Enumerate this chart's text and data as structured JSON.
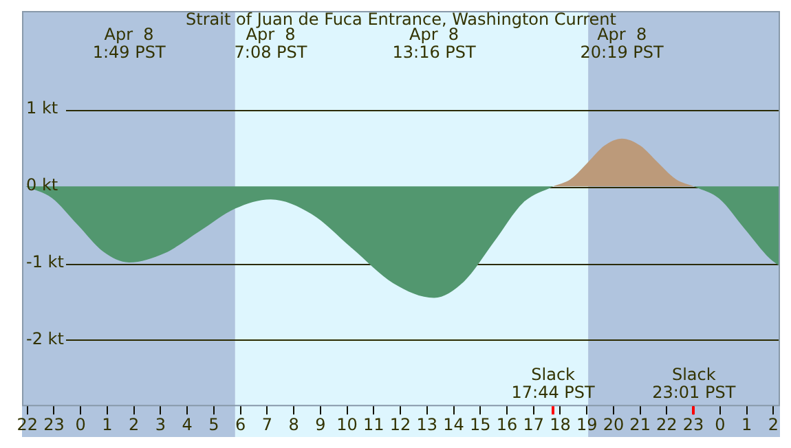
{
  "chart_data": {
    "type": "area",
    "title": "Strait of Juan de Fuca Entrance, Washington Current",
    "series": [
      {
        "color": "#52976f",
        "x": [
          "--04-07T21:56",
          "--04-07T22:55",
          "--04-07T23:53",
          "--04-08T00:51",
          "--04-08T01:49",
          "--04-08T03:09",
          "--04-08T04:29",
          "--04-08T05:48",
          "--04-08T07:08",
          "--04-08T08:40",
          "--04-08T10:12",
          "--04-08T11:44",
          "--04-08T13:16",
          "--04-08T14:23",
          "--04-08T15:30",
          "--04-08T16:37",
          "--04-08T17:44"
        ],
        "values": [
          0,
          -0.15,
          -0.5,
          -0.85,
          -0.99,
          -0.87,
          -0.58,
          -0.29,
          -0.17,
          -0.36,
          -0.81,
          -1.26,
          -1.45,
          -1.24,
          -0.73,
          -0.21,
          0
        ]
      },
      {
        "color": "#bc9a7a",
        "x": [
          "--04-08T17:44",
          "--04-08T18:23",
          "--04-08T19:02",
          "--04-08T19:40",
          "--04-08T20:19",
          "--04-08T21:00",
          "--04-08T21:40",
          "--04-08T22:21",
          "--04-08T23:01"
        ],
        "values": [
          0,
          0.09,
          0.31,
          0.53,
          0.62,
          0.53,
          0.31,
          0.09,
          0
        ]
      },
      {
        "color": "#52976f",
        "x": [
          "--04-08T23:01",
          "--04-08T23:58",
          "--04-09T00:55",
          "--04-09T01:52",
          "--04-09T02:15"
        ],
        "values": [
          0,
          -0.16,
          -0.55,
          -0.94,
          -1.04
        ]
      }
    ],
    "xlim": [
      "--04-07T21:48",
      "--04-09T02:15"
    ],
    "xticks": [
      {
        "value": "--04-07T22:00",
        "label": "22"
      },
      {
        "value": "--04-07T23:00",
        "label": "23"
      },
      {
        "value": "--04-08T00:00",
        "label": "0"
      },
      {
        "value": "--04-08T01:00",
        "label": "1"
      },
      {
        "value": "--04-08T02:00",
        "label": "2"
      },
      {
        "value": "--04-08T03:00",
        "label": "3"
      },
      {
        "value": "--04-08T04:00",
        "label": "4"
      },
      {
        "value": "--04-08T05:00",
        "label": "5"
      },
      {
        "value": "--04-08T06:00",
        "label": "6"
      },
      {
        "value": "--04-08T07:00",
        "label": "7"
      },
      {
        "value": "--04-08T08:00",
        "label": "8"
      },
      {
        "value": "--04-08T09:00",
        "label": "9"
      },
      {
        "value": "--04-08T10:00",
        "label": "10"
      },
      {
        "value": "--04-08T11:00",
        "label": "11"
      },
      {
        "value": "--04-08T12:00",
        "label": "12"
      },
      {
        "value": "--04-08T13:00",
        "label": "13"
      },
      {
        "value": "--04-08T14:00",
        "label": "14"
      },
      {
        "value": "--04-08T15:00",
        "label": "15"
      },
      {
        "value": "--04-08T16:00",
        "label": "16"
      },
      {
        "value": "--04-08T17:00",
        "label": "17"
      },
      {
        "value": "--04-08T18:00",
        "label": "18"
      },
      {
        "value": "--04-08T19:00",
        "label": "19"
      },
      {
        "value": "--04-08T20:00",
        "label": "20"
      },
      {
        "value": "--04-08T21:00",
        "label": "21"
      },
      {
        "value": "--04-08T22:00",
        "label": "22"
      },
      {
        "value": "--04-08T23:00",
        "label": "23"
      },
      {
        "value": "--04-09T00:00",
        "label": "0"
      },
      {
        "value": "--04-09T01:00",
        "label": "1"
      },
      {
        "value": "--04-09T02:00",
        "label": "2"
      }
    ],
    "ylim": [
      -2.86,
      2.28
    ],
    "yticks": [
      {
        "value": -2,
        "label": "-2 kt"
      },
      {
        "value": -1,
        "label": "-1 kt"
      },
      {
        "value": 0,
        "label": "0 kt"
      },
      {
        "value": 1,
        "label": "1 kt"
      }
    ],
    "grid": "y",
    "bands": [
      {
        "axis": "x",
        "from": "--04-07T21:48",
        "to": "--04-08T05:48",
        "color": "#b0c4de"
      },
      {
        "axis": "x",
        "from": "--04-08T05:48",
        "to": "--04-08T19:03",
        "color": "#def6fe"
      },
      {
        "axis": "x",
        "from": "--04-08T19:03",
        "to": "--04-09T02:15",
        "color": "#b0c4de"
      }
    ],
    "annotations": [
      "Apr  8\n1:49 PST",
      "Apr  8\n7:08 PST",
      "Apr  8\n13:16 PST",
      "Slack\n17:44 PST",
      "Apr  8\n20:19 PST",
      "Slack\n23:01 PST"
    ]
  }
}
